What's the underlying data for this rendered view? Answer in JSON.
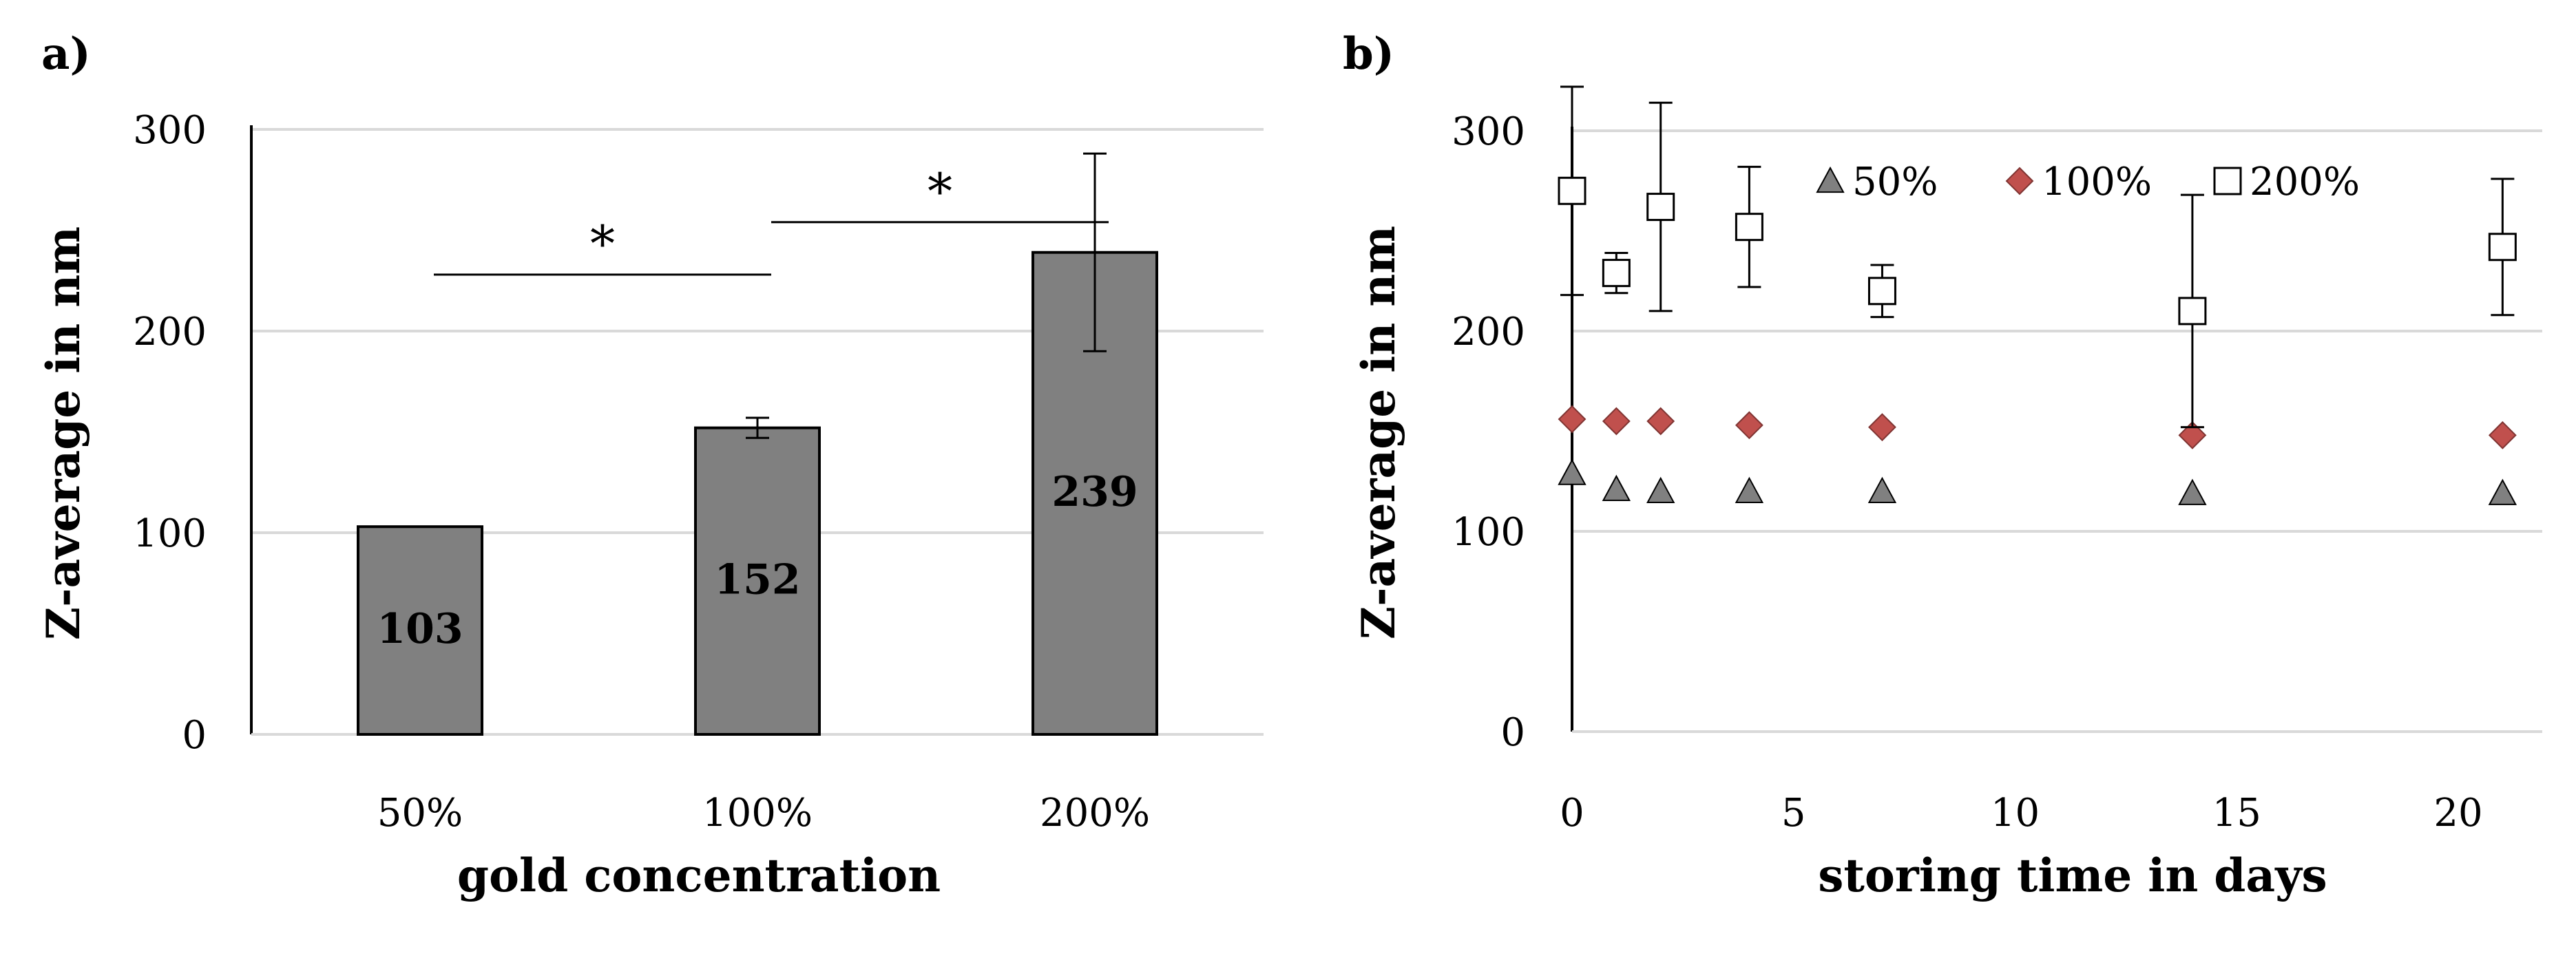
{
  "panels": {
    "a_label": "a)",
    "b_label": "b)"
  },
  "colors": {
    "bar_fill": "#808080",
    "grid": "#d9d9d9",
    "diamond_fill": "#c0504d",
    "triangle_fill": "#808080",
    "square_fill": "#ffffff",
    "stroke": "#000000"
  },
  "chart_data": [
    {
      "panel": "a",
      "type": "bar",
      "title": "",
      "xlabel": "gold concentration",
      "ylabel": "Z-average in nm",
      "ylim": [
        0,
        300
      ],
      "yticks": [
        "0",
        "100",
        "200",
        "300"
      ],
      "grid": true,
      "categories": [
        "50%",
        "100%",
        "200%"
      ],
      "values": [
        103,
        152,
        239
      ],
      "value_labels": [
        "103",
        "152",
        "239"
      ],
      "errors": [
        0,
        5,
        49
      ],
      "significance": [
        {
          "from": 0,
          "to": 1,
          "level": 228,
          "label": "*"
        },
        {
          "from": 1,
          "to": 2,
          "level": 254,
          "label": "*"
        }
      ]
    },
    {
      "panel": "b",
      "type": "scatter",
      "title": "",
      "xlabel": "storing time in days",
      "ylabel": "Z-average in nm",
      "xlim": [
        0,
        22
      ],
      "ylim": [
        0,
        300
      ],
      "xticks": [
        "0",
        "5",
        "10",
        "15",
        "20"
      ],
      "yticks": [
        "0",
        "100",
        "200",
        "300"
      ],
      "grid": true,
      "legend": "top",
      "series": [
        {
          "name": "50%",
          "marker": "triangle",
          "x": [
            0,
            1,
            2,
            4,
            7,
            14,
            21
          ],
          "y": [
            129,
            121,
            120,
            120,
            120,
            119,
            119
          ],
          "err": [
            0,
            0,
            0,
            0,
            0,
            0,
            0
          ]
        },
        {
          "name": "100%",
          "marker": "diamond",
          "x": [
            0,
            1,
            2,
            4,
            7,
            14,
            21
          ],
          "y": [
            156,
            155,
            155,
            153,
            152,
            148,
            148
          ],
          "err": [
            0,
            0,
            0,
            0,
            0,
            0,
            0
          ]
        },
        {
          "name": "200%",
          "marker": "square",
          "x": [
            0,
            1,
            2,
            4,
            7,
            14,
            21
          ],
          "y": [
            270,
            229,
            262,
            252,
            220,
            210,
            242
          ],
          "err": [
            52,
            10,
            52,
            30,
            13,
            58,
            34
          ]
        }
      ]
    }
  ]
}
